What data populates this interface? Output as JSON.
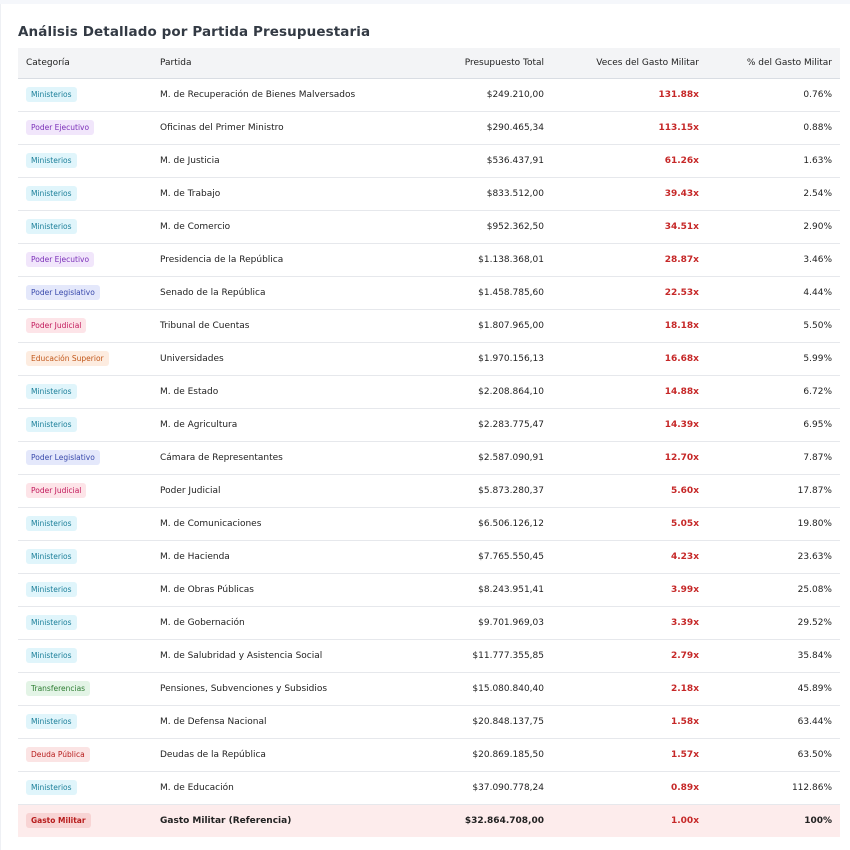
{
  "title": "Análisis Detallado por Partida Presupuestaria",
  "columns": [
    "Categoría",
    "Partida",
    "Presupuesto Total",
    "Veces del Gasto Militar",
    "% del Gasto Militar"
  ],
  "category_colors": {
    "Ministerios": {
      "bg": "#e0f5fb",
      "fg": "#1b7f99"
    },
    "Poder Ejecutivo": {
      "bg": "#f1e6fb",
      "fg": "#7b2fb8"
    },
    "Poder Legislativo": {
      "bg": "#e4e8fb",
      "fg": "#3949ab"
    },
    "Poder Judicial": {
      "bg": "#fde4e8",
      "fg": "#c2185b"
    },
    "Educación Superior": {
      "bg": "#fdece0",
      "fg": "#c1571a"
    },
    "Transferencias": {
      "bg": "#e3f4e6",
      "fg": "#2e7d32"
    },
    "Deuda Pública": {
      "bg": "#fbe4e4",
      "fg": "#b71c1c"
    },
    "Gasto Militar": {
      "bg": "#f8d4d4",
      "fg": "#b71c1c"
    }
  },
  "rows": [
    {
      "category": "Ministerios",
      "partida": "M. de Recuperación de Bienes Malversados",
      "total": "$249.210,00",
      "times": "131.88x",
      "pct": "0.76%"
    },
    {
      "category": "Poder Ejecutivo",
      "partida": "Oficinas del Primer Ministro",
      "total": "$290.465,34",
      "times": "113.15x",
      "pct": "0.88%"
    },
    {
      "category": "Ministerios",
      "partida": "M. de Justicia",
      "total": "$536.437,91",
      "times": "61.26x",
      "pct": "1.63%"
    },
    {
      "category": "Ministerios",
      "partida": "M. de Trabajo",
      "total": "$833.512,00",
      "times": "39.43x",
      "pct": "2.54%"
    },
    {
      "category": "Ministerios",
      "partida": "M. de Comercio",
      "total": "$952.362,50",
      "times": "34.51x",
      "pct": "2.90%"
    },
    {
      "category": "Poder Ejecutivo",
      "partida": "Presidencia de la República",
      "total": "$1.138.368,01",
      "times": "28.87x",
      "pct": "3.46%"
    },
    {
      "category": "Poder Legislativo",
      "partida": "Senado de la República",
      "total": "$1.458.785,60",
      "times": "22.53x",
      "pct": "4.44%"
    },
    {
      "category": "Poder Judicial",
      "partida": "Tribunal de Cuentas",
      "total": "$1.807.965,00",
      "times": "18.18x",
      "pct": "5.50%"
    },
    {
      "category": "Educación Superior",
      "partida": "Universidades",
      "total": "$1.970.156,13",
      "times": "16.68x",
      "pct": "5.99%"
    },
    {
      "category": "Ministerios",
      "partida": "M. de Estado",
      "total": "$2.208.864,10",
      "times": "14.88x",
      "pct": "6.72%"
    },
    {
      "category": "Ministerios",
      "partida": "M. de Agricultura",
      "total": "$2.283.775,47",
      "times": "14.39x",
      "pct": "6.95%"
    },
    {
      "category": "Poder Legislativo",
      "partida": "Cámara de Representantes",
      "total": "$2.587.090,91",
      "times": "12.70x",
      "pct": "7.87%"
    },
    {
      "category": "Poder Judicial",
      "partida": "Poder Judicial",
      "total": "$5.873.280,37",
      "times": "5.60x",
      "pct": "17.87%"
    },
    {
      "category": "Ministerios",
      "partida": "M. de Comunicaciones",
      "total": "$6.506.126,12",
      "times": "5.05x",
      "pct": "19.80%"
    },
    {
      "category": "Ministerios",
      "partida": "M. de Hacienda",
      "total": "$7.765.550,45",
      "times": "4.23x",
      "pct": "23.63%"
    },
    {
      "category": "Ministerios",
      "partida": "M. de Obras Públicas",
      "total": "$8.243.951,41",
      "times": "3.99x",
      "pct": "25.08%"
    },
    {
      "category": "Ministerios",
      "partida": "M. de Gobernación",
      "total": "$9.701.969,03",
      "times": "3.39x",
      "pct": "29.52%"
    },
    {
      "category": "Ministerios",
      "partida": "M. de Salubridad y Asistencia Social",
      "total": "$11.777.355,85",
      "times": "2.79x",
      "pct": "35.84%"
    },
    {
      "category": "Transferencias",
      "partida": "Pensiones, Subvenciones y Subsidios",
      "total": "$15.080.840,40",
      "times": "2.18x",
      "pct": "45.89%"
    },
    {
      "category": "Ministerios",
      "partida": "M. de Defensa Nacional",
      "total": "$20.848.137,75",
      "times": "1.58x",
      "pct": "63.44%"
    },
    {
      "category": "Deuda Pública",
      "partida": "Deudas de la República",
      "total": "$20.869.185,50",
      "times": "1.57x",
      "pct": "63.50%"
    },
    {
      "category": "Ministerios",
      "partida": "M. de Educación",
      "total": "$37.090.778,24",
      "times": "0.89x",
      "pct": "112.86%"
    }
  ],
  "reference_row": {
    "category": "Gasto Militar",
    "partida": "Gasto Militar (Referencia)",
    "total": "$32.864.708,00",
    "times": "1.00x",
    "pct": "100%"
  }
}
